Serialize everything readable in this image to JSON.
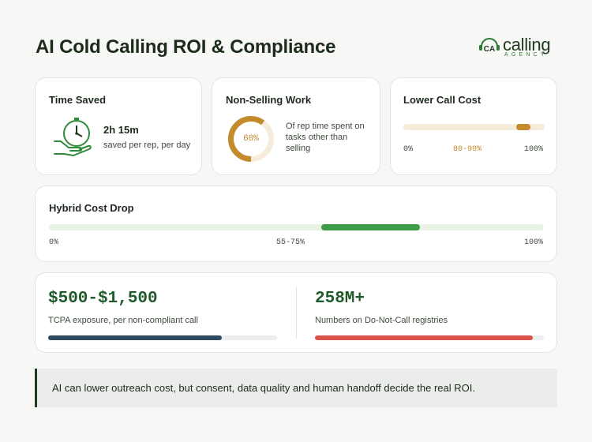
{
  "header": {
    "title": "AI Cold Calling ROI & Compliance",
    "logo_mark": "CA",
    "logo_word": "calling",
    "logo_sub": "AGENCY"
  },
  "cards": {
    "time_saved": {
      "title": "Time Saved",
      "value": "2h 15m",
      "description": "saved per rep, per day",
      "icon": "clock-hand-icon"
    },
    "non_selling": {
      "title": "Non-Selling Work",
      "percent_label": "60%",
      "percent": 60,
      "description": "Of rep time spent on tasks other than selling"
    },
    "lower_call_cost": {
      "title": "Lower Call Cost",
      "min_label": "0%",
      "range_label": "80-90%",
      "max_label": "100%",
      "range_start": 80,
      "range_end": 90
    },
    "hybrid_cost_drop": {
      "title": "Hybrid Cost Drop",
      "min_label": "0%",
      "range_label": "55-75%",
      "max_label": "100%",
      "range_start": 55,
      "range_end": 75
    }
  },
  "stats": {
    "tcpa": {
      "value": "$500-$1,500",
      "label": "TCPA exposure, per non-compliant call",
      "bar_fraction": 0.76
    },
    "dnc": {
      "value": "258M+",
      "label": "Numbers on Do-Not-Call registries",
      "bar_fraction": 0.95
    }
  },
  "note": {
    "text": "AI can lower outreach cost, but consent, data quality and human handoff decide the real ROI."
  },
  "colors": {
    "brand_green": "#1f3a1e",
    "accent_gold": "#c48a2c",
    "accent_green": "#3d9c45",
    "bar_navy": "#2f4a5e",
    "bar_red": "#d9534a"
  }
}
